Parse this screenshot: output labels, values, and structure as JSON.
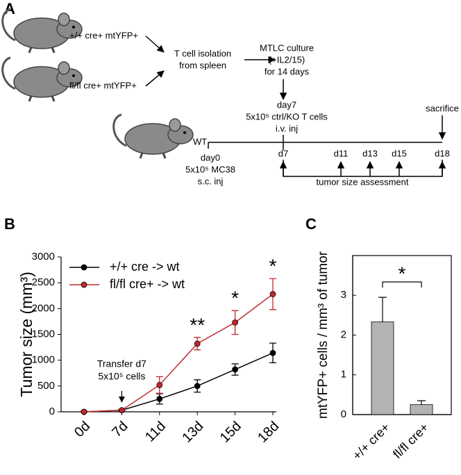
{
  "schematic": {
    "label": "A",
    "donor_1": "+/+ cre+ mtYFP+",
    "donor_2": "fl/fl cre+ mtYFP+",
    "isolation": [
      "T cell isolation",
      "from spleen"
    ],
    "culture": [
      "MTLC culture",
      "(+IL2/15)",
      "for 14 days"
    ],
    "transfer": [
      "day7",
      "5x10⁵ ctrl/KO T cells",
      "i.v. inj"
    ],
    "recipient": "WT",
    "inoculation": [
      "day0",
      "5x10⁵ MC38",
      "s.c. inj"
    ],
    "sacrifice": "sacrifice",
    "timepoints": [
      "d7",
      "d11",
      "d13",
      "d15",
      "d18"
    ],
    "assessment": "tumor size assessment"
  },
  "chart_data": [
    {
      "type": "line",
      "panel": "B",
      "ylabel": "Tumor size (mm³)",
      "categories": [
        "0d",
        "7d",
        "11d",
        "13d",
        "15d",
        "18d"
      ],
      "series": [
        {
          "name": "+/+ cre -> wt",
          "color": "#000000",
          "values": [
            0,
            30,
            250,
            500,
            820,
            1140
          ],
          "errors": [
            10,
            15,
            100,
            120,
            110,
            190
          ]
        },
        {
          "name": "fl/fl cre+ -> wt",
          "color": "#c0282d",
          "values": [
            0,
            30,
            520,
            1320,
            1730,
            2280
          ],
          "errors": [
            10,
            15,
            160,
            120,
            230,
            300
          ]
        }
      ],
      "ylim": [
        0,
        3000
      ],
      "yticks": [
        0,
        500,
        1000,
        1500,
        2000,
        2500,
        3000
      ],
      "annotations": [
        {
          "text": "**",
          "x": "13d"
        },
        {
          "text": "*",
          "x": "15d"
        },
        {
          "text": "*",
          "x": "18d"
        }
      ],
      "arrow_annotation": {
        "lines": [
          "Transfer d7",
          "5x10⁵ cells"
        ],
        "x": "7d"
      },
      "legend": "upper left"
    },
    {
      "type": "bar",
      "panel": "C",
      "ylabel": "mtYFP+ cells / mm³ of tumor",
      "categories": [
        "+/+ cre+",
        "fl/fl cre+"
      ],
      "values": [
        2.33,
        0.25
      ],
      "errors": [
        0.62,
        0.1
      ],
      "color": "#b3b3b3",
      "ylim": [
        0,
        4
      ],
      "yticks": [
        0,
        1,
        2,
        3
      ],
      "significance": {
        "text": "*",
        "between": [
          "+/+ cre+",
          "fl/fl cre+"
        ]
      }
    }
  ]
}
